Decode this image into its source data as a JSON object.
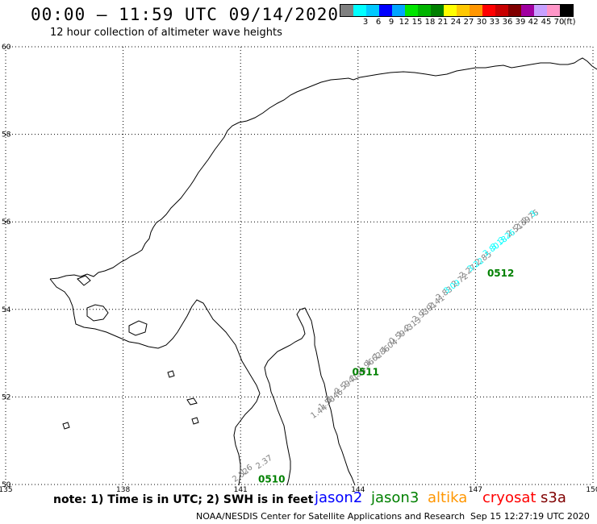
{
  "header": {
    "title": "00:00 — 11:59 UTC 09/14/2020",
    "subtitle": "12 hour collection of altimeter wave heights"
  },
  "legend": {
    "unit": "(ft)",
    "bins": [
      {
        "label": "",
        "color": "#808080"
      },
      {
        "label": "3",
        "color": "#00ffff"
      },
      {
        "label": "6",
        "color": "#00c8ff"
      },
      {
        "label": "9",
        "color": "#0000ff"
      },
      {
        "label": "12",
        "color": "#00a5ff"
      },
      {
        "label": "15",
        "color": "#00e600"
      },
      {
        "label": "18",
        "color": "#00b400"
      },
      {
        "label": "21",
        "color": "#008000"
      },
      {
        "label": "24",
        "color": "#ffff00"
      },
      {
        "label": "27",
        "color": "#ffc800"
      },
      {
        "label": "30",
        "color": "#ff9600"
      },
      {
        "label": "33",
        "color": "#ff0000"
      },
      {
        "label": "36",
        "color": "#c80000"
      },
      {
        "label": "39",
        "color": "#800000"
      },
      {
        "label": "42",
        "color": "#a000a0"
      },
      {
        "label": "45",
        "color": "#c8a0ff"
      },
      {
        "label": "70",
        "color": "#ff96c8"
      },
      {
        "label": "",
        "color": "#000000"
      }
    ]
  },
  "map": {
    "lat_ticks": [
      "60",
      "58",
      "56",
      "54",
      "52",
      "50"
    ],
    "lon_ticks": [
      "135",
      "138",
      "141",
      "144",
      "147",
      "150"
    ],
    "lat_range": [
      50,
      60
    ],
    "lon_range": [
      135,
      150
    ]
  },
  "track": {
    "observations": [
      {
        "value": "2.52",
        "lon": 140.85,
        "lat": 50.05,
        "color": "#808080"
      },
      {
        "value": "1.6",
        "lon": 141.05,
        "lat": 50.2,
        "color": "#808080"
      },
      {
        "value": "2.37",
        "lon": 141.45,
        "lat": 50.35,
        "color": "#808080"
      },
      {
        "value": "1.44",
        "lon": 142.85,
        "lat": 51.5,
        "color": "#808080"
      },
      {
        "value": "1.56",
        "lon": 143.05,
        "lat": 51.7,
        "color": "#808080"
      },
      {
        "value": "1.46",
        "lon": 143.25,
        "lat": 51.85,
        "color": "#808080"
      },
      {
        "value": "0.59",
        "lon": 143.45,
        "lat": 52.05,
        "color": "#808080"
      },
      {
        "value": "2.41",
        "lon": 143.65,
        "lat": 52.2,
        "color": "#808080"
      },
      {
        "value": "1.94",
        "lon": 143.85,
        "lat": 52.35,
        "color": "#808080"
      },
      {
        "value": "1.96",
        "lon": 144.05,
        "lat": 52.55,
        "color": "#808080"
      },
      {
        "value": "1.62",
        "lon": 144.25,
        "lat": 52.7,
        "color": "#808080"
      },
      {
        "value": "1.86",
        "lon": 144.45,
        "lat": 52.85,
        "color": "#808080"
      },
      {
        "value": "1.04",
        "lon": 144.65,
        "lat": 53.0,
        "color": "#808080"
      },
      {
        "value": "0.59",
        "lon": 144.85,
        "lat": 53.2,
        "color": "#808080"
      },
      {
        "value": "1.43",
        "lon": 145.05,
        "lat": 53.35,
        "color": "#808080"
      },
      {
        "value": "2.13",
        "lon": 145.25,
        "lat": 53.5,
        "color": "#808080"
      },
      {
        "value": "2.93",
        "lon": 145.45,
        "lat": 53.7,
        "color": "#808080"
      },
      {
        "value": "2.91",
        "lon": 145.65,
        "lat": 53.85,
        "color": "#808080"
      },
      {
        "value": "2.41",
        "lon": 145.85,
        "lat": 54.0,
        "color": "#808080"
      },
      {
        "value": "2.83",
        "lon": 146.05,
        "lat": 54.2,
        "color": "#808080"
      },
      {
        "value": "3.09",
        "lon": 146.25,
        "lat": 54.35,
        "color": "#00ffff"
      },
      {
        "value": "2.72",
        "lon": 146.45,
        "lat": 54.5,
        "color": "#808080"
      },
      {
        "value": "2.27",
        "lon": 146.65,
        "lat": 54.7,
        "color": "#808080"
      },
      {
        "value": "3.22",
        "lon": 146.85,
        "lat": 54.85,
        "color": "#00ffff"
      },
      {
        "value": "2.85",
        "lon": 147.05,
        "lat": 55.0,
        "color": "#808080"
      },
      {
        "value": "3.80",
        "lon": 147.25,
        "lat": 55.2,
        "color": "#00ffff"
      },
      {
        "value": "3.18",
        "lon": 147.45,
        "lat": 55.35,
        "color": "#00ffff"
      },
      {
        "value": "3.26",
        "lon": 147.65,
        "lat": 55.5,
        "color": "#00ffff"
      },
      {
        "value": "2.51",
        "lon": 147.85,
        "lat": 55.65,
        "color": "#808080"
      },
      {
        "value": "2.89",
        "lon": 148.05,
        "lat": 55.8,
        "color": "#808080"
      },
      {
        "value": "2.76",
        "lon": 148.25,
        "lat": 55.95,
        "color": "#808080"
      },
      {
        "value": "3.",
        "lon": 148.45,
        "lat": 56.1,
        "color": "#00ffff"
      }
    ],
    "time_labels": [
      {
        "text": "0510",
        "lon": 141.45,
        "lat": 50.05
      },
      {
        "text": "0511",
        "lon": 143.85,
        "lat": 52.5
      },
      {
        "text": "0512",
        "lon": 147.3,
        "lat": 54.75
      }
    ],
    "time_label_color": "#008000"
  },
  "footer": {
    "note": "note:  1) Time is in UTC;  2) SWH is in feet",
    "satellites": [
      {
        "name": "jason2",
        "color": "#0000ff"
      },
      {
        "name": "jason3",
        "color": "#008000"
      },
      {
        "name": "altika",
        "color": "#ff9600"
      },
      {
        "name": "cryosat",
        "color": "#ff0000"
      },
      {
        "name": "s3a",
        "color": "#800000"
      }
    ],
    "credit": "NOAA/NESDIS Center for Satellite Applications and Research",
    "generated": "Sep 15 12:27:19 UTC 2020"
  }
}
